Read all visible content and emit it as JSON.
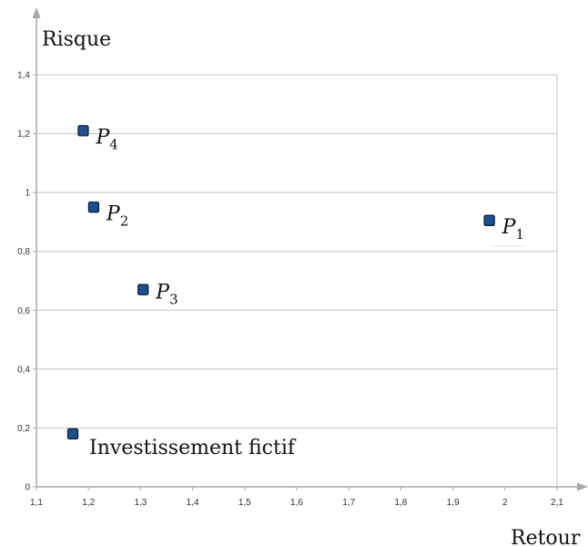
{
  "chart_data": {
    "type": "scatter",
    "xlabel": "Retour",
    "ylabel": "Risque",
    "xlim": [
      1.1,
      2.1
    ],
    "ylim": [
      0,
      1.4
    ],
    "xticks": [
      "1,1",
      "1,2",
      "1,3",
      "1,4",
      "1,5",
      "1,6",
      "1,7",
      "1,8",
      "1,9",
      "2",
      "2,1"
    ],
    "yticks": [
      "0",
      "0,2",
      "0,4",
      "0,6",
      "0,8",
      "1",
      "1,2",
      "1,4"
    ],
    "grid": true,
    "marker_color": "#1f4f8f",
    "points": [
      {
        "label": "P",
        "subscript": "1",
        "x": 1.97,
        "y": 0.905
      },
      {
        "label": "P",
        "subscript": "2",
        "x": 1.21,
        "y": 0.95
      },
      {
        "label": "P",
        "subscript": "3",
        "x": 1.305,
        "y": 0.67
      },
      {
        "label": "P",
        "subscript": "4",
        "x": 1.19,
        "y": 1.21
      },
      {
        "label": "Investissement fictif",
        "subscript": "",
        "x": 1.17,
        "y": 0.18
      }
    ]
  }
}
